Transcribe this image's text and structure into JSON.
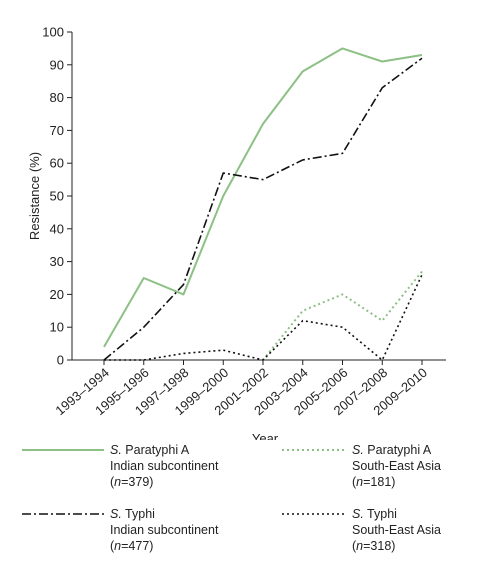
{
  "chart_data": {
    "type": "line",
    "title": "",
    "xlabel": "Year",
    "ylabel": "Resistance (%)",
    "ylim": [
      0,
      100
    ],
    "yticks": [
      0,
      10,
      20,
      30,
      40,
      50,
      60,
      70,
      80,
      90,
      100
    ],
    "grid": false,
    "categories": [
      "1993–1994",
      "1995–1996",
      "1997–1998",
      "1999–2000",
      "2001–2002",
      "2003–2004",
      "2005–2006",
      "2007–2008",
      "2009–2010"
    ],
    "series": [
      {
        "id": "paratyphi-indian",
        "name_genus": "S.",
        "name_species": " Paratyphi A",
        "name_region": "Indian subcontinent",
        "n_label": "n",
        "n_value": "=379",
        "color": "#8cc084",
        "dash": "solid",
        "values": [
          4,
          25,
          20,
          50,
          72,
          88,
          95,
          91,
          93
        ]
      },
      {
        "id": "paratyphi-sea",
        "name_genus": "S.",
        "name_species": " Paratyphi A",
        "name_region": "South-East Asia",
        "n_label": "n",
        "n_value": "=181",
        "color": "#8cc084",
        "dash": "dotted",
        "values": [
          null,
          null,
          null,
          null,
          0,
          15,
          20,
          12,
          27
        ]
      },
      {
        "id": "typhi-indian",
        "name_genus": "S.",
        "name_species": " Typhi",
        "name_region": "Indian subcontinent",
        "n_label": "n",
        "n_value": "=477",
        "color": "#111111",
        "dash": "dashdot",
        "values": [
          0,
          10,
          23,
          57,
          55,
          61,
          63,
          83,
          92
        ]
      },
      {
        "id": "typhi-sea",
        "name_genus": "S.",
        "name_species": " Typhi",
        "name_region": "South-East Asia",
        "n_label": "n",
        "n_value": "=318",
        "color": "#111111",
        "dash": "dotted",
        "values": [
          0,
          0,
          2,
          3,
          0,
          12,
          10,
          0,
          26
        ]
      }
    ]
  }
}
